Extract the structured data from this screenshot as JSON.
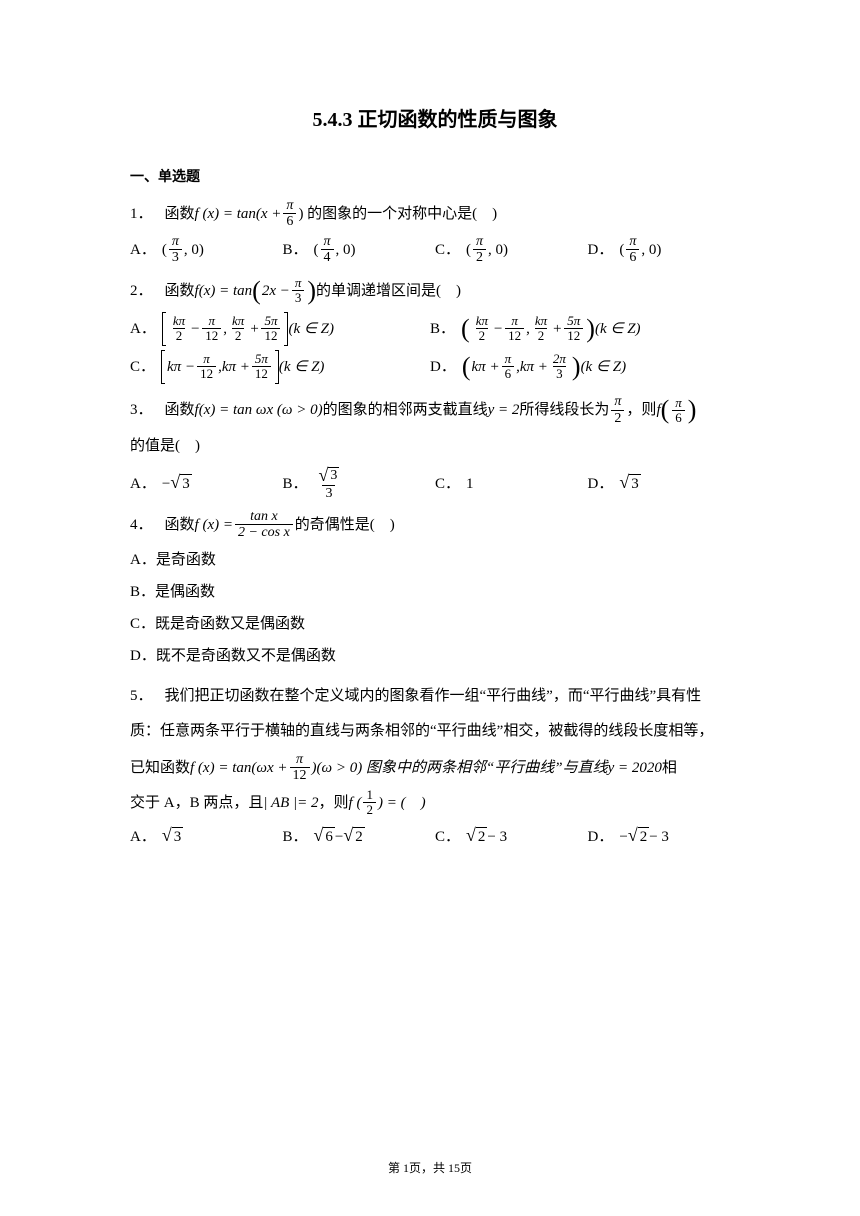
{
  "title": "5.4.3 正切函数的性质与图象",
  "section1": "一、单选题",
  "q1": {
    "num": "1．",
    "stem_pre": "函数 ",
    "fx": "f (x) = tan(x + ",
    "frac_num": "π",
    "frac_den": "6",
    "stem_post": ") 的图象的一个对称中心是(　)",
    "A": {
      "lbl": "A．",
      "pre": "(",
      "num": "π",
      "den": "3",
      "post": ", 0)"
    },
    "B": {
      "lbl": "B．",
      "pre": "(",
      "num": "π",
      "den": "4",
      "post": ", 0)"
    },
    "C": {
      "lbl": "C．",
      "pre": "(",
      "num": "π",
      "den": "2",
      "post": ", 0)"
    },
    "D": {
      "lbl": "D．",
      "pre": "(",
      "num": "π",
      "den": "6",
      "post": ", 0)"
    }
  },
  "q2": {
    "num": "2．",
    "stem_pre": "函数 ",
    "fx": "f(x) = tan",
    "inner_pre": "2x − ",
    "frac_num": "π",
    "frac_den": "3",
    "stem_post": " 的单调递增区间是(　)",
    "A": {
      "lbl": "A．",
      "t1n": "kπ",
      "t1d": "2",
      "s1": " − ",
      "t2n": "π",
      "t2d": "12",
      "sep": ", ",
      "t3n": "kπ",
      "t3d": "2",
      "s2": " + ",
      "t4n": "5π",
      "t4d": "12",
      "tail": " (k ∈ Z)"
    },
    "B": {
      "lbl": "B．",
      "t1n": "kπ",
      "t1d": "2",
      "s1": " − ",
      "t2n": "π",
      "t2d": "12",
      "sep": ", ",
      "t3n": "kπ",
      "t3d": "2",
      "s2": " + ",
      "t4n": "5π",
      "t4d": "12",
      "tail": " (k ∈ Z)"
    },
    "C": {
      "lbl": "C．",
      "t1": "kπ − ",
      "t2n": "π",
      "t2d": "12",
      "sep": ", ",
      "t3": "kπ + ",
      "t4n": "5π",
      "t4d": "12",
      "tail": " (k ∈ Z)"
    },
    "D": {
      "lbl": "D．",
      "t1": "kπ + ",
      "t2n": "π",
      "t2d": "6",
      "sep": ", ",
      "t3": "kπ + ",
      "t4n": "2π",
      "t4d": "3",
      "tail": " (k ∈ Z)"
    }
  },
  "q3": {
    "num": "3．",
    "stem_a": "函数 ",
    "fx": "f(x) = tan ωx (ω > 0)",
    "stem_b": " 的图象的相邻两支截直线 ",
    "y2": "y = 2",
    "stem_c": " 所得线段长为 ",
    "frn": "π",
    "frd": "2",
    "stem_d": "，则 ",
    "fcall_open": "f",
    "arg_n": "π",
    "arg_d": "6",
    "line2": "的值是(　)",
    "A": {
      "lbl": "A．",
      "neg": "−",
      "v": "3"
    },
    "B": {
      "lbl": "B．",
      "num_v": "3",
      "den": "3"
    },
    "C": {
      "lbl": "C．",
      "v": "1"
    },
    "D": {
      "lbl": "D．",
      "v": "3"
    }
  },
  "q4": {
    "num": "4．",
    "stem_pre": "函数 ",
    "fx": "f (x) = ",
    "topn": "tan x",
    "botd": "2 − cos x",
    "stem_post": " 的奇偶性是(　)",
    "A": "A．是奇函数",
    "B": "B．是偶函数",
    "C": "C．既是奇函数又是偶函数",
    "D": "D．既不是奇函数又不是偶函数"
  },
  "q5": {
    "num": "5．",
    "p1": "我们把正切函数在整个定义域内的图象看作一组“平行曲线”，而“平行曲线”具有性",
    "p2": "质：任意两条平行于横轴的直线与两条相邻的“平行曲线”相交，被截得的线段长度相等，",
    "p3a": "已知函数 ",
    "fx": "f (x) = tan(ωx + ",
    "frn": "π",
    "frd": "12",
    "p3b": ")(ω > 0) 图象中的两条相邻“平行曲线”与直线 ",
    "yv": "y = 2020",
    "p3c": " 相",
    "p4a": "交于 A，B 两点，且 ",
    "ab": "| AB |= 2",
    "p4b": "，则 ",
    "fh": "f (",
    "argn": "1",
    "argd": "2",
    "fht": ") = (　)",
    "A": {
      "lbl": "A．",
      "v": "3"
    },
    "B": {
      "lbl": "B．",
      "v1": "6",
      "mid": " − ",
      "v2": "2"
    },
    "C": {
      "lbl": "C．",
      "v": "2",
      "tail": " − 3"
    },
    "D": {
      "lbl": "D．",
      "neg": "−",
      "v": "2",
      "tail": " − 3"
    }
  },
  "footer": "第 1页，共 15页"
}
